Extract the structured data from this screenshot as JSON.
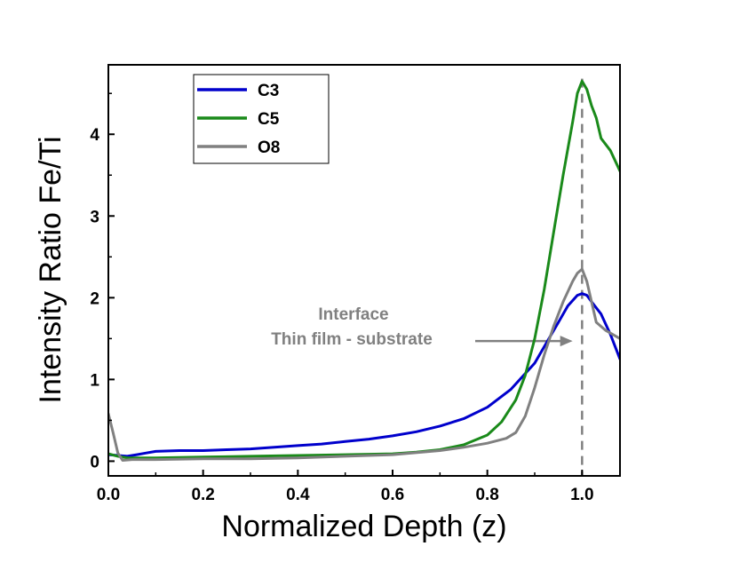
{
  "chart_data": {
    "type": "line",
    "xlabel": "Normalized Depth (z)",
    "ylabel": "Intensity Ratio Fe/Ti",
    "xlim": [
      0,
      1.08
    ],
    "ylim": [
      -0.18,
      4.85
    ],
    "xticks": [
      "0.0",
      "0.2",
      "0.4",
      "0.6",
      "0.8",
      "1.0"
    ],
    "yticks": [
      "0",
      "1",
      "2",
      "3",
      "4"
    ],
    "grid": false,
    "legend_position": "top-left",
    "series": [
      {
        "name": "C3",
        "color": "#0000cc",
        "x": [
          0,
          0.02,
          0.04,
          0.06,
          0.08,
          0.1,
          0.15,
          0.2,
          0.25,
          0.3,
          0.35,
          0.4,
          0.45,
          0.5,
          0.55,
          0.6,
          0.65,
          0.7,
          0.75,
          0.8,
          0.85,
          0.9,
          0.93,
          0.95,
          0.97,
          0.99,
          1.0,
          1.01,
          1.02,
          1.04,
          1.06,
          1.08
        ],
        "y": [
          0.08,
          0.07,
          0.06,
          0.08,
          0.1,
          0.12,
          0.13,
          0.13,
          0.14,
          0.15,
          0.17,
          0.19,
          0.21,
          0.24,
          0.27,
          0.31,
          0.36,
          0.43,
          0.52,
          0.66,
          0.88,
          1.2,
          1.5,
          1.7,
          1.9,
          2.03,
          2.05,
          2.03,
          1.95,
          1.8,
          1.55,
          1.25
        ]
      },
      {
        "name": "C5",
        "color": "#1a8a1a",
        "x": [
          0,
          0.02,
          0.04,
          0.06,
          0.1,
          0.2,
          0.3,
          0.4,
          0.5,
          0.6,
          0.65,
          0.7,
          0.75,
          0.8,
          0.83,
          0.86,
          0.88,
          0.9,
          0.92,
          0.94,
          0.96,
          0.98,
          0.99,
          1.0,
          1.01,
          1.02,
          1.03,
          1.04,
          1.06,
          1.08
        ],
        "y": [
          0.09,
          0.06,
          0.04,
          0.04,
          0.04,
          0.05,
          0.06,
          0.07,
          0.08,
          0.09,
          0.11,
          0.14,
          0.2,
          0.32,
          0.48,
          0.75,
          1.05,
          1.5,
          2.1,
          2.8,
          3.5,
          4.15,
          4.5,
          4.65,
          4.55,
          4.35,
          4.2,
          3.95,
          3.8,
          3.55
        ]
      },
      {
        "name": "O8",
        "color": "#808080",
        "x": [
          0,
          0.01,
          0.02,
          0.03,
          0.05,
          0.1,
          0.2,
          0.3,
          0.4,
          0.5,
          0.6,
          0.7,
          0.75,
          0.8,
          0.84,
          0.86,
          0.88,
          0.9,
          0.92,
          0.94,
          0.96,
          0.98,
          0.99,
          1.0,
          1.01,
          1.02,
          1.03,
          1.05,
          1.08
        ],
        "y": [
          0.58,
          0.35,
          0.1,
          0.01,
          0.02,
          0.02,
          0.03,
          0.03,
          0.04,
          0.06,
          0.08,
          0.13,
          0.17,
          0.22,
          0.28,
          0.35,
          0.55,
          0.9,
          1.3,
          1.65,
          1.95,
          2.2,
          2.3,
          2.35,
          2.2,
          1.95,
          1.7,
          1.6,
          1.5
        ]
      }
    ],
    "vline": {
      "x": 1.0,
      "color": "#808080",
      "style": "dashed"
    },
    "annotation": {
      "line1": "Interface",
      "line2": "Thin film - substrate",
      "arrow_target": {
        "x": 0.98,
        "y": 1.47
      }
    }
  }
}
